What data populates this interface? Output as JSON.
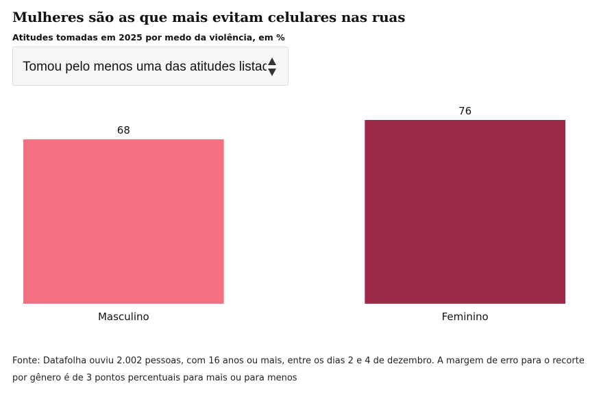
{
  "header": {
    "title": "Mulheres são as que mais evitam celulares nas ruas",
    "subtitle": "Atitudes tomadas em 2025 por medo da violência, em %"
  },
  "selector": {
    "selected": "Tomou pelo menos uma das atitudes listadas"
  },
  "chart_data": {
    "type": "bar",
    "title": "Mulheres são as que mais evitam celulares nas ruas",
    "subtitle": "Atitudes tomadas em 2025 por medo da violência, em %",
    "categories": [
      "Masculino",
      "Feminino"
    ],
    "values": [
      68,
      76
    ],
    "colors": [
      "#f37180",
      "#9c2b4a"
    ],
    "xlabel": "",
    "ylabel": "",
    "ylim": [
      0,
      76
    ],
    "grid": false,
    "legend": "none"
  },
  "footer": {
    "source": "Fonte: Datafolha ouviu 2.002 pessoas, com 16 anos ou mais, entre os dias 2 e 4 de dezembro. A margem de erro para o recorte por gênero é de 3 pontos percentuais para mais ou para menos"
  }
}
